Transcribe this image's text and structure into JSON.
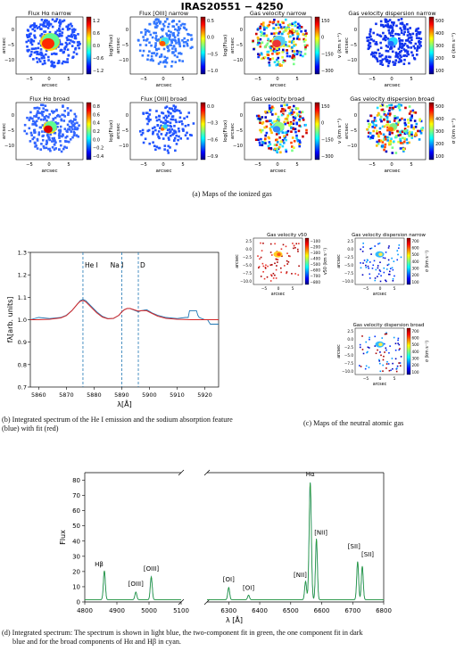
{
  "figure_title": "IRAS20551 − 4250",
  "panel_a": {
    "caption": "(a) Maps of the ionized gas",
    "maps": [
      {
        "title": "Flux Hα narrow",
        "ticks": [
          "1.2",
          "0.6",
          "0.0",
          "−0.6",
          "−1.2"
        ],
        "cbar_label": "log(Flux)"
      },
      {
        "title": "Flux [OIII] narrow",
        "ticks": [
          "0.5",
          "0.0",
          "−0.5",
          "−1.0"
        ],
        "cbar_label": "log(Flux)"
      },
      {
        "title": "Gas velocity narrow",
        "ticks": [
          "150",
          "0",
          "−150",
          "−300"
        ],
        "cbar_label": "v (km s⁻¹)"
      },
      {
        "title": "Gas velocity dispersion narrow",
        "ticks": [
          "500",
          "400",
          "300",
          "200",
          "100"
        ],
        "cbar_label": "σ (km s⁻¹)"
      },
      {
        "title": "Flux Hα broad",
        "ticks": [
          "0.8",
          "0.6",
          "0.4",
          "0.2",
          "0.0",
          "−0.2",
          "−0.4"
        ],
        "cbar_label": "log(Flux)"
      },
      {
        "title": "Flux [OIII] broad",
        "ticks": [
          "0.0",
          "−0.3",
          "−0.6",
          "−0.9"
        ],
        "cbar_label": "log(Flux)"
      },
      {
        "title": "Gas velocity broad",
        "ticks": [
          "150",
          "0",
          "−150",
          "−300"
        ],
        "cbar_label": "v (km s⁻¹)"
      },
      {
        "title": "Gas velocity dispersion broad",
        "ticks": [
          "500",
          "400",
          "300",
          "200",
          "100"
        ],
        "cbar_label": "σ (km s⁻¹)"
      }
    ],
    "xticks": [
      "−5",
      "0",
      "5"
    ],
    "yticks": [
      "0",
      "−5",
      "−10"
    ],
    "axis_label": "arcsec"
  },
  "panel_b": {
    "caption_line1": "(b) Integrated spectrum of the He I emission and the sodium absorption feature",
    "caption_line2": "(blue) with fit (red)",
    "xlabel": "λ[Å]",
    "ylabel": "fλ[arb. units]",
    "line_labels": [
      "He I",
      "Na I",
      "D"
    ]
  },
  "panel_c": {
    "caption": "(c) Maps of the neutral atomic gas",
    "maps": [
      {
        "title": "Gas velocity v50",
        "ticks": [
          "−100",
          "−200",
          "−300",
          "−400",
          "−500",
          "−600",
          "−700",
          "−800"
        ],
        "cbar_label": "v50 (km s⁻¹)"
      },
      {
        "title": "Gas velocity dispersion narrow",
        "ticks": [
          "700",
          "600",
          "500",
          "400",
          "300",
          "200",
          "100"
        ],
        "cbar_label": "σ (km s⁻¹)"
      },
      {
        "title": "Gas velocity dispersion broad",
        "ticks": [
          "700",
          "600",
          "500",
          "400",
          "300",
          "200",
          "100"
        ],
        "cbar_label": "σ (km s⁻¹)"
      }
    ],
    "xticks": [
      "−5",
      "0",
      "5"
    ],
    "yticks": [
      "2.5",
      "0.0",
      "−2.5",
      "−5.0",
      "−7.5",
      "−10.0"
    ],
    "axis_label": "arcsec"
  },
  "panel_d": {
    "caption_line1": "(d) Integrated spectrum: The spectrum is shown in light blue, the two-component fit in green, the one component fit in dark",
    "caption_line2": "blue and for the broad components of Hα and Hβ in cyan.",
    "xlabel": "λ [Å]",
    "ylabel": "Flux",
    "line_labels": [
      "Hβ",
      "[OIII]",
      "[OIII]",
      "[OI]",
      "[OI]",
      "[NII]",
      "Hα",
      "[NII]",
      "[SII]",
      "[SII]"
    ]
  },
  "chart_data": [
    {
      "type": "line",
      "xlabel": "λ[Å]",
      "ylabel": "fλ[arb. units]",
      "xlim": [
        5857,
        5925
      ],
      "ylim": [
        0.7,
        1.3
      ],
      "xticks": [
        5860,
        5870,
        5880,
        5890,
        5900,
        5910,
        5920
      ],
      "yticks": [
        0.7,
        0.8,
        0.9,
        1.0,
        1.1,
        1.2,
        1.3
      ],
      "grid": false,
      "vlines": [
        {
          "label": "He I",
          "x": 5876
        },
        {
          "label": "Na I",
          "x": 5890
        },
        {
          "label": "D",
          "x": 5896
        }
      ],
      "series": [
        {
          "color": "#1f77b4",
          "x": [
            5857,
            5860,
            5864,
            5868,
            5870,
            5872,
            5874,
            5875,
            5876,
            5877,
            5879,
            5881,
            5883,
            5885,
            5887,
            5889,
            5890,
            5891,
            5892,
            5893,
            5894,
            5896,
            5897,
            5899,
            5901,
            5903,
            5906,
            5910,
            5913,
            5914,
            5914.5,
            5915,
            5916,
            5917,
            5917.5,
            5918,
            5920,
            5921,
            5921.5,
            5922,
            5925
          ],
          "y": [
            1.0,
            1.01,
            1.005,
            1.01,
            1.02,
            1.04,
            1.07,
            1.085,
            1.09,
            1.085,
            1.06,
            1.035,
            1.015,
            1.005,
            1.005,
            1.02,
            1.035,
            1.045,
            1.05,
            1.05,
            1.045,
            1.035,
            1.04,
            1.045,
            1.03,
            1.02,
            1.01,
            1.005,
            1.01,
            1.01,
            1.04,
            1.04,
            1.04,
            1.04,
            1.02,
            1.01,
            1.0,
            1.0,
            0.99,
            0.98,
            0.98
          ]
        },
        {
          "color": "#d62728",
          "x": [
            5857,
            5860,
            5864,
            5868,
            5870,
            5872,
            5874,
            5875,
            5876,
            5877,
            5879,
            5881,
            5883,
            5885,
            5887,
            5889,
            5890,
            5891,
            5892,
            5893,
            5894,
            5896,
            5897,
            5899,
            5901,
            5903,
            5906,
            5910,
            5915,
            5920,
            5925
          ],
          "y": [
            1.0,
            1.0,
            1.002,
            1.008,
            1.018,
            1.04,
            1.07,
            1.082,
            1.086,
            1.08,
            1.055,
            1.03,
            1.012,
            1.004,
            1.006,
            1.02,
            1.035,
            1.045,
            1.05,
            1.05,
            1.046,
            1.038,
            1.04,
            1.04,
            1.028,
            1.016,
            1.006,
            1.002,
            1.0,
            1.0,
            1.0
          ]
        }
      ]
    },
    {
      "type": "line",
      "xlabel": "λ [Å]",
      "ylabel": "Flux",
      "xlim_left": [
        4800,
        5100
      ],
      "xlim_right": [
        6230,
        6800
      ],
      "ylim": [
        0,
        85
      ],
      "xticks": [
        4800,
        4900,
        5000,
        5100,
        6300,
        6400,
        6500,
        6600,
        6700,
        6800
      ],
      "yticks": [
        0,
        10,
        20,
        30,
        40,
        50,
        60,
        70,
        80
      ],
      "peaks": [
        {
          "label": "Hβ",
          "x": 4861,
          "y": 19
        },
        {
          "label": "[OIII]",
          "x": 4959,
          "y": 5
        },
        {
          "label": "[OIII]",
          "x": 5007,
          "y": 15
        },
        {
          "label": "[OI]",
          "x": 6300,
          "y": 8
        },
        {
          "label": "[OI]",
          "x": 6364,
          "y": 3
        },
        {
          "label": "[NII]",
          "x": 6548,
          "y": 12
        },
        {
          "label": "Hα",
          "x": 6563,
          "y": 77
        },
        {
          "label": "[NII]",
          "x": 6583,
          "y": 40
        },
        {
          "label": "[SII]",
          "x": 6716,
          "y": 25
        },
        {
          "label": "[SII]",
          "x": 6731,
          "y": 22
        }
      ]
    }
  ]
}
